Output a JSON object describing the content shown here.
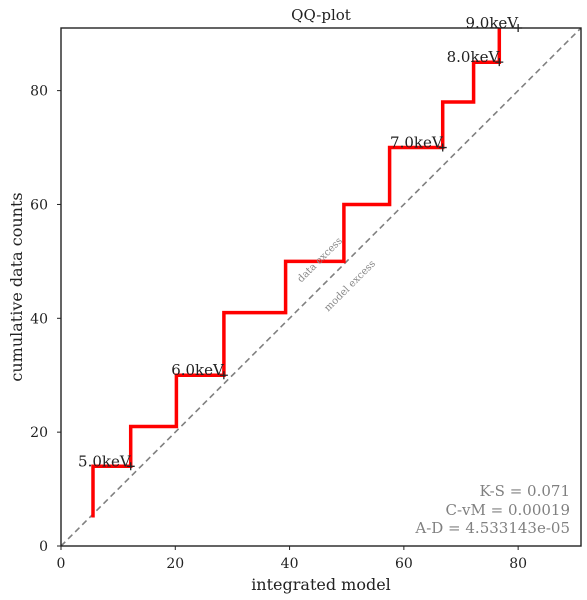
{
  "chart_data": {
    "type": "line",
    "title": "QQ-plot",
    "xlabel": "integrated model",
    "ylabel": "cumulative data counts",
    "xlim": [
      0,
      91
    ],
    "ylim": [
      0,
      91
    ],
    "x_ticks": [
      "0",
      "20",
      "40",
      "60",
      "80"
    ],
    "y_ticks": [
      "0",
      "20",
      "40",
      "60",
      "80"
    ],
    "x_tick_values": [
      0,
      20,
      40,
      60,
      80
    ],
    "y_tick_values": [
      0,
      20,
      40,
      60,
      80
    ],
    "grid": false,
    "series": [
      {
        "color": "#ff0000",
        "x": [
          5.6,
          5.6,
          12.2,
          12.2,
          20.2,
          20.2,
          28.5,
          28.5,
          39.3,
          39.3,
          49.5,
          49.5,
          57.5,
          57.5,
          66.8,
          66.8,
          72.2,
          72.2,
          76.7,
          76.7
        ],
        "y": [
          5,
          14,
          14,
          21,
          21,
          30,
          30,
          41,
          41,
          50,
          50,
          60,
          60,
          70,
          70,
          78,
          78,
          85,
          85,
          91
        ]
      }
    ],
    "reference_line": {
      "x": [
        0,
        91
      ],
      "y": [
        0,
        91
      ],
      "color": "#808080",
      "style": "dashed"
    },
    "markers": [
      {
        "label": "5.0keV",
        "x": 12.2,
        "y": 14
      },
      {
        "label": "6.0keV",
        "x": 28.5,
        "y": 30
      },
      {
        "label": "7.0keV",
        "x": 66.8,
        "y": 70
      },
      {
        "label": "8.0keV",
        "x": 76.7,
        "y": 85
      },
      {
        "label": "9.0keV",
        "x": 80,
        "y": 91
      }
    ],
    "annotations": {
      "data_excess": "data excess",
      "model_excess": "model excess"
    },
    "stats": {
      "ks": "K-S = 0.071",
      "cvm": "C-vM = 0.00019",
      "ad": "A-D = 4.533143e-05"
    }
  }
}
